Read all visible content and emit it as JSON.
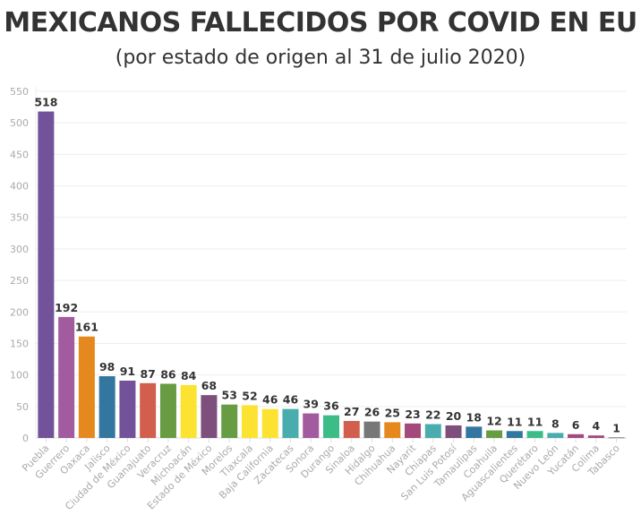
{
  "chart_data": {
    "type": "bar",
    "title": "MEXICANOS FALLECIDOS POR COVID EN EU",
    "subtitle": "(por estado de origen al 31 de julio 2020)",
    "xlabel": "",
    "ylabel": "",
    "ylim": [
      0,
      550
    ],
    "yticks": [
      0,
      50,
      100,
      150,
      200,
      250,
      300,
      350,
      400,
      450,
      500,
      550
    ],
    "grid": true,
    "categories": [
      "Puebla",
      "Guerrero",
      "Oaxaca",
      "Jalisco",
      "Ciudad de México",
      "Guanajuato",
      "Veracruz",
      "Michoacán",
      "Estado de México",
      "Morelos",
      "Tlaxcala",
      "Baja California",
      "Zacatecas",
      "Sonora",
      "Durango",
      "Sinaloa",
      "Hidalgo",
      "Chihuahua",
      "Nayarit",
      "Chiapas",
      "San Luis Potosí",
      "Tamaulipas",
      "Coahuila",
      "Aguascalientes",
      "Querétaro",
      "Nuevo León",
      "Yucatán",
      "Colima",
      "Tabasco"
    ],
    "values": [
      518,
      192,
      161,
      98,
      91,
      87,
      86,
      84,
      68,
      53,
      52,
      46,
      46,
      39,
      36,
      27,
      26,
      25,
      23,
      22,
      20,
      18,
      12,
      11,
      11,
      8,
      6,
      4,
      1
    ],
    "colors": [
      "#725399",
      "#a35b9f",
      "#e5891f",
      "#33769f",
      "#725399",
      "#d25f4d",
      "#679c43",
      "#fde331",
      "#7e4f7c",
      "#679c43",
      "#fde331",
      "#fde331",
      "#4aadad",
      "#a35b9f",
      "#3cbd88",
      "#d25f4d",
      "#777777",
      "#e5891f",
      "#a3497c",
      "#4aadad",
      "#7e4f7c",
      "#33769f",
      "#679c43",
      "#33769f",
      "#3cbd88",
      "#4aadad",
      "#a3497c",
      "#a3497c",
      "#777777"
    ]
  }
}
